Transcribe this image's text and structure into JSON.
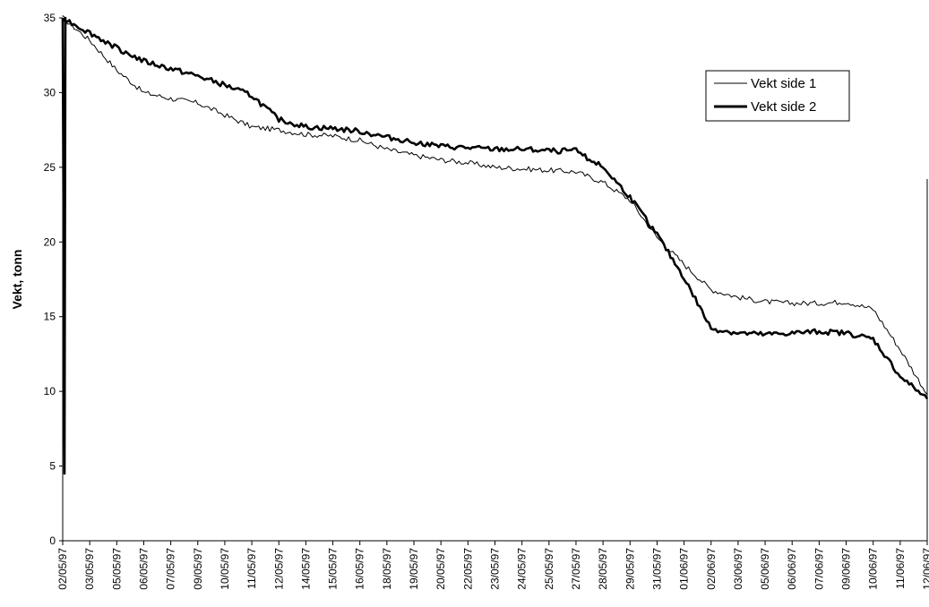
{
  "chart_data": {
    "type": "line",
    "ylabel": "Vekt, tonn",
    "xlabel": "",
    "title": "",
    "ylim": [
      0,
      35
    ],
    "yticks": [
      0,
      5,
      10,
      15,
      20,
      25,
      30,
      35
    ],
    "xlim": [
      "02/05/97",
      "12/06/97"
    ],
    "categories": [
      "02/05/97",
      "03/05/97",
      "05/05/97",
      "06/05/97",
      "07/05/97",
      "09/05/97",
      "10/05/97",
      "11/05/97",
      "12/05/97",
      "14/05/97",
      "15/05/97",
      "16/05/97",
      "18/05/97",
      "19/05/97",
      "20/05/97",
      "22/05/97",
      "23/05/97",
      "24/05/97",
      "25/05/97",
      "27/05/97",
      "28/05/97",
      "29/05/97",
      "31/05/97",
      "01/06/97",
      "02/06/97",
      "03/06/97",
      "05/06/97",
      "06/06/97",
      "07/06/97",
      "09/06/97",
      "10/06/97",
      "11/06/97",
      "12/06/97"
    ],
    "legend_position": "top-right",
    "grid": false,
    "series": [
      {
        "name": "Vekt side 1",
        "color": "#000000",
        "weight": "thin",
        "x": [
          "02/05/97",
          "03/05/97",
          "05/05/97",
          "06/05/97",
          "07/05/97",
          "09/05/97",
          "10/05/97",
          "11/05/97",
          "12/05/97",
          "14/05/97",
          "15/05/97",
          "16/05/97",
          "18/05/97",
          "19/05/97",
          "20/05/97",
          "22/05/97",
          "23/05/97",
          "24/05/97",
          "25/05/97",
          "27/05/97",
          "28/05/97",
          "29/05/97",
          "31/05/97",
          "01/06/97",
          "02/06/97",
          "03/06/97",
          "05/06/97",
          "06/06/97",
          "07/06/97",
          "09/06/97",
          "10/06/97",
          "11/06/97",
          "12/06/97"
        ],
        "values": [
          35.0,
          33.5,
          31.5,
          30.0,
          29.6,
          29.3,
          28.5,
          27.7,
          27.5,
          27.2,
          27.1,
          26.8,
          26.2,
          25.8,
          25.5,
          25.3,
          25.0,
          24.9,
          24.8,
          24.7,
          24.0,
          22.8,
          20.3,
          18.5,
          16.8,
          16.3,
          16.0,
          15.9,
          15.9,
          16.0,
          15.5,
          12.8,
          9.8
        ]
      },
      {
        "name": "Vekt side 2",
        "color": "#000000",
        "weight": "thick",
        "x": [
          "02/05/97",
          "03/05/97",
          "05/05/97",
          "06/05/97",
          "07/05/97",
          "09/05/97",
          "10/05/97",
          "11/05/97",
          "12/05/97",
          "14/05/97",
          "15/05/97",
          "16/05/97",
          "18/05/97",
          "19/05/97",
          "20/05/97",
          "22/05/97",
          "23/05/97",
          "24/05/97",
          "25/05/97",
          "27/05/97",
          "28/05/97",
          "29/05/97",
          "31/05/97",
          "01/06/97",
          "02/06/97",
          "03/06/97",
          "05/06/97",
          "06/06/97",
          "07/06/97",
          "09/06/97",
          "10/06/97",
          "11/06/97",
          "12/06/97"
        ],
        "values": [
          35.0,
          34.0,
          33.0,
          32.1,
          31.6,
          31.1,
          30.5,
          29.8,
          28.2,
          27.7,
          27.6,
          27.4,
          27.0,
          26.7,
          26.4,
          26.3,
          26.2,
          26.2,
          26.1,
          26.1,
          25.0,
          23.0,
          20.5,
          17.6,
          14.2,
          13.9,
          13.8,
          13.9,
          14.0,
          13.9,
          13.5,
          11.0,
          9.5
        ]
      }
    ],
    "annotations": [
      {
        "series": "Vekt side 1",
        "note_values": [
          35,
          5
        ]
      },
      {
        "series": "Vekt side 2",
        "note_values": [
          35,
          4.5
        ]
      }
    ]
  }
}
